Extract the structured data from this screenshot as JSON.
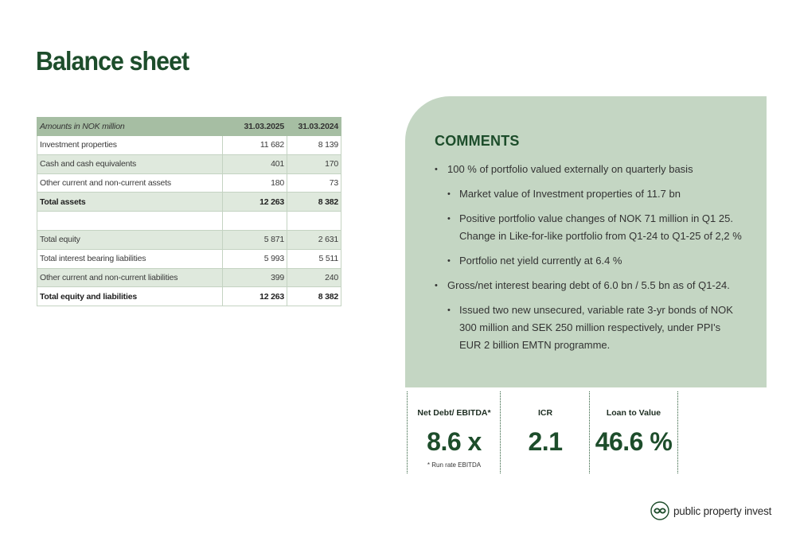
{
  "page": {
    "title": "Balance sheet"
  },
  "table": {
    "headers": [
      "Amounts in NOK million",
      "31.03.2025",
      "31.03.2024"
    ],
    "rows": [
      {
        "label": "Investment properties",
        "v2025": "11 682",
        "v2024": "8 139",
        "total": false
      },
      {
        "label": "Cash and cash equivalents",
        "v2025": "401",
        "v2024": "170",
        "total": false
      },
      {
        "label": "Other current and non-current assets",
        "v2025": "180",
        "v2024": "73",
        "total": false
      },
      {
        "label": "Total assets",
        "v2025": "12 263",
        "v2024": "8 382",
        "total": true
      },
      {
        "label": "",
        "v2025": "",
        "v2024": "",
        "total": false,
        "blank": true
      },
      {
        "label": "Total equity",
        "v2025": "5 871",
        "v2024": "2 631",
        "total": false
      },
      {
        "label": "Total interest bearing liabilities",
        "v2025": "5 993",
        "v2024": "5 511",
        "total": false
      },
      {
        "label": "Other current and non-current liabilities",
        "v2025": "399",
        "v2024": "240",
        "total": false
      },
      {
        "label": "Total equity and liabilities",
        "v2025": "12 263",
        "v2024": "8 382",
        "total": true
      }
    ]
  },
  "comments": {
    "title": "COMMENTS",
    "items": [
      {
        "level": 1,
        "text": "100 % of portfolio valued externally on quarterly basis"
      },
      {
        "level": 2,
        "text": "Market value of Investment properties of 11.7 bn"
      },
      {
        "level": 2,
        "text": "Positive portfolio value changes of NOK 71 million in Q1 25. Change in Like-for-like portfolio from Q1-24 to Q1-25 of 2,2 %"
      },
      {
        "level": 2,
        "text": "Portfolio net yield currently at 6.4 %"
      },
      {
        "level": 1,
        "text": "Gross/net interest bearing debt of 6.0 bn / 5.5 bn as of Q1-24."
      },
      {
        "level": 2,
        "text": "Issued two new unsecured, variable rate 3-yr bonds of NOK 300 million and SEK 250 million respectively, under PPI's EUR 2 billion EMTN programme."
      }
    ]
  },
  "kpis": {
    "net_debt": {
      "label": "Net Debt/ EBITDA*",
      "value": "8.6 x",
      "note": "* Run rate EBITDA"
    },
    "icr": {
      "label": "ICR",
      "value": "2.1"
    },
    "ltv": {
      "label": "Loan to Value",
      "value": "46.6 %"
    }
  },
  "logo": {
    "text": "public property invest",
    "icon": "ppi-logo-icon"
  },
  "colors": {
    "brand_green": "#1d4d2b",
    "panel_green": "#c4d6c3",
    "table_header": "#a6bea3",
    "row_stripe": "#dfe9dd"
  }
}
